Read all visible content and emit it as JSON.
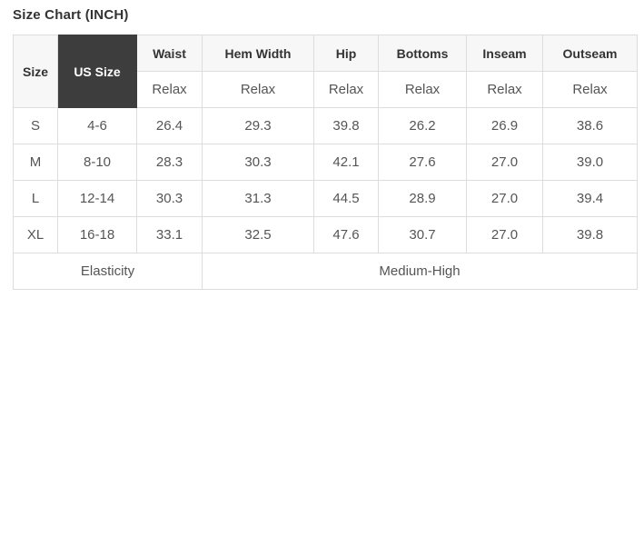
{
  "title": "Size Chart (INCH)",
  "table": {
    "header": {
      "size_label": "Size",
      "us_size_label": "US Size",
      "measure_columns": [
        {
          "label": "Waist",
          "sub": "Relax"
        },
        {
          "label": "Hem Width",
          "sub": "Relax"
        },
        {
          "label": "Hip",
          "sub": "Relax"
        },
        {
          "label": "Bottoms",
          "sub": "Relax"
        },
        {
          "label": "Inseam",
          "sub": "Relax"
        },
        {
          "label": "Outseam",
          "sub": "Relax"
        }
      ]
    },
    "rows": [
      {
        "size": "S",
        "us_size": "4-6",
        "values": [
          "26.4",
          "29.3",
          "39.8",
          "26.2",
          "26.9",
          "38.6"
        ]
      },
      {
        "size": "M",
        "us_size": "8-10",
        "values": [
          "28.3",
          "30.3",
          "42.1",
          "27.6",
          "27.0",
          "39.0"
        ]
      },
      {
        "size": "L",
        "us_size": "12-14",
        "values": [
          "30.3",
          "31.3",
          "44.5",
          "28.9",
          "27.0",
          "39.4"
        ]
      },
      {
        "size": "XL",
        "us_size": "16-18",
        "values": [
          "33.1",
          "32.5",
          "47.6",
          "30.7",
          "27.0",
          "39.8"
        ]
      }
    ],
    "footer": {
      "label": "Elasticity",
      "value": "Medium-High"
    }
  },
  "colors": {
    "us_size_cell_bg": "#3d3d3d",
    "header_cell_bg": "#f7f7f7",
    "border": "#dddddd",
    "header_text": "#333333",
    "body_text": "#555555"
  }
}
